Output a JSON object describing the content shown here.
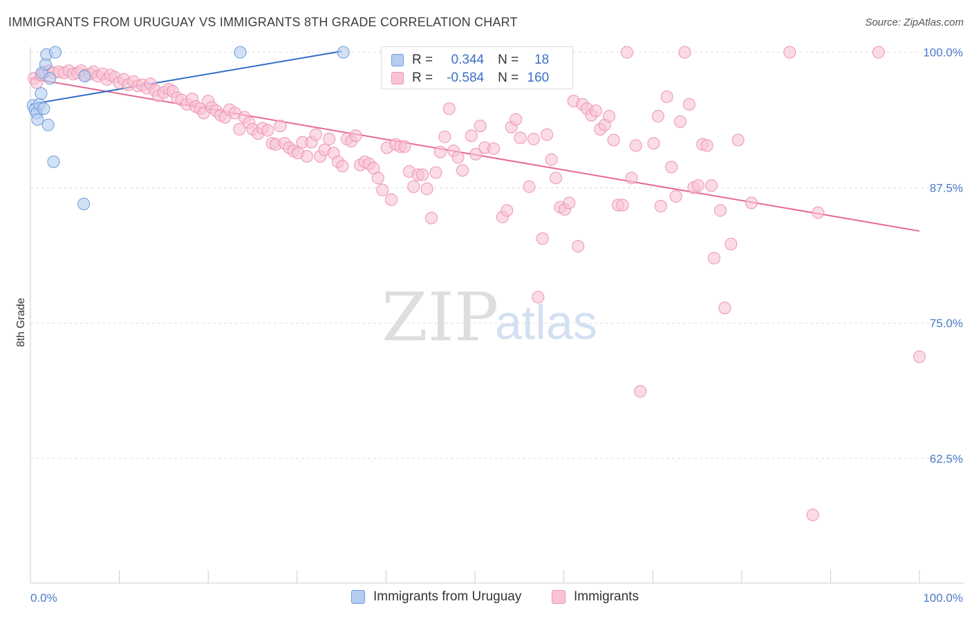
{
  "title": "IMMIGRANTS FROM URUGUAY VS IMMIGRANTS 8TH GRADE CORRELATION CHART",
  "source": "Source: ZipAtlas.com",
  "watermark": {
    "zip": "ZIP",
    "atlas": "atlas"
  },
  "legend_top": [
    {
      "r_label": "R =",
      "r_value": "0.344",
      "n_label": "N =",
      "n_value": "18"
    },
    {
      "r_label": "R =",
      "r_value": "-0.584",
      "n_label": "N =",
      "n_value": "160"
    }
  ],
  "legend_bottom": [
    {
      "label": "Immigrants from Uruguay"
    },
    {
      "label": "Immigrants"
    }
  ],
  "colors": {
    "blue_fill": "#b4cdf0",
    "blue_stroke": "#6f9ad8",
    "blue_line": "#2f6dc8",
    "pink_fill": "#f9c3d4",
    "pink_stroke": "#ee92b0",
    "pink_line": "#e76796",
    "grid": "#dddddd",
    "axis_text": "#4a7ac9"
  },
  "chart_data": {
    "type": "scatter",
    "title": "IMMIGRANTS FROM URUGUAY VS IMMIGRANTS 8TH GRADE CORRELATION CHART",
    "xlabel": "",
    "ylabel": "8th Grade",
    "xlim": [
      0,
      100
    ],
    "ylim": [
      51,
      101
    ],
    "x_tick_labels": [
      {
        "x": 0,
        "label": "0.0%"
      },
      {
        "x": 100,
        "label": "100.0%"
      }
    ],
    "y_ticks": [
      {
        "y": 100.0,
        "label": "100.0%"
      },
      {
        "y": 87.5,
        "label": "87.5%"
      },
      {
        "y": 75.0,
        "label": "75.0%"
      },
      {
        "y": 62.5,
        "label": "62.5%"
      }
    ],
    "grid": "horizontal dashed",
    "legend_placement": "bottom",
    "series": [
      {
        "name": "Immigrants from Uruguay",
        "color": "#b4cdf0",
        "trend": {
          "x": [
            0,
            35
          ],
          "y": [
            95.2,
            100.1
          ]
        },
        "points": [
          {
            "x": 0.3,
            "y": 95.1
          },
          {
            "x": 0.5,
            "y": 94.7
          },
          {
            "x": 0.7,
            "y": 94.4
          },
          {
            "x": 0.8,
            "y": 93.8
          },
          {
            "x": 1.0,
            "y": 95.2
          },
          {
            "x": 1.2,
            "y": 96.2
          },
          {
            "x": 1.3,
            "y": 98.1
          },
          {
            "x": 1.5,
            "y": 94.8
          },
          {
            "x": 1.7,
            "y": 98.9
          },
          {
            "x": 1.8,
            "y": 99.8
          },
          {
            "x": 2.0,
            "y": 93.3
          },
          {
            "x": 2.2,
            "y": 97.6
          },
          {
            "x": 2.6,
            "y": 89.9
          },
          {
            "x": 2.8,
            "y": 100.0
          },
          {
            "x": 6.1,
            "y": 97.8
          },
          {
            "x": 6.0,
            "y": 86.0
          },
          {
            "x": 23.6,
            "y": 100.0
          },
          {
            "x": 35.2,
            "y": 100.0
          }
        ]
      },
      {
        "name": "Immigrants",
        "color": "#f9c3d4",
        "trend": {
          "x": [
            0,
            100
          ],
          "y": [
            97.6,
            83.5
          ]
        },
        "points": [
          {
            "x": 0.4,
            "y": 97.6
          },
          {
            "x": 0.7,
            "y": 97.2
          },
          {
            "x": 1.2,
            "y": 97.9
          },
          {
            "x": 1.6,
            "y": 98.2
          },
          {
            "x": 2.1,
            "y": 98.3
          },
          {
            "x": 2.6,
            "y": 98.1
          },
          {
            "x": 3.2,
            "y": 98.2
          },
          {
            "x": 3.8,
            "y": 98.1
          },
          {
            "x": 4.3,
            "y": 98.3
          },
          {
            "x": 4.8,
            "y": 98.0
          },
          {
            "x": 5.3,
            "y": 98.1
          },
          {
            "x": 5.7,
            "y": 98.3
          },
          {
            "x": 6.2,
            "y": 97.9
          },
          {
            "x": 6.7,
            "y": 98.0
          },
          {
            "x": 7.1,
            "y": 98.2
          },
          {
            "x": 7.6,
            "y": 97.8
          },
          {
            "x": 8.1,
            "y": 98.0
          },
          {
            "x": 8.6,
            "y": 97.5
          },
          {
            "x": 9.0,
            "y": 97.9
          },
          {
            "x": 9.5,
            "y": 97.7
          },
          {
            "x": 10.0,
            "y": 97.2
          },
          {
            "x": 10.5,
            "y": 97.5
          },
          {
            "x": 11.0,
            "y": 97.0
          },
          {
            "x": 11.6,
            "y": 97.3
          },
          {
            "x": 12.1,
            "y": 96.9
          },
          {
            "x": 12.6,
            "y": 97.0
          },
          {
            "x": 13.1,
            "y": 96.7
          },
          {
            "x": 13.5,
            "y": 97.1
          },
          {
            "x": 14.0,
            "y": 96.5
          },
          {
            "x": 14.4,
            "y": 96.0
          },
          {
            "x": 15.0,
            "y": 96.3
          },
          {
            "x": 15.6,
            "y": 96.6
          },
          {
            "x": 16.0,
            "y": 96.4
          },
          {
            "x": 16.5,
            "y": 95.8
          },
          {
            "x": 17.0,
            "y": 95.6
          },
          {
            "x": 17.6,
            "y": 95.2
          },
          {
            "x": 18.2,
            "y": 95.7
          },
          {
            "x": 18.6,
            "y": 95.0
          },
          {
            "x": 19.1,
            "y": 94.8
          },
          {
            "x": 19.5,
            "y": 94.4
          },
          {
            "x": 20.0,
            "y": 95.5
          },
          {
            "x": 20.4,
            "y": 94.9
          },
          {
            "x": 20.9,
            "y": 94.6
          },
          {
            "x": 21.4,
            "y": 94.2
          },
          {
            "x": 21.9,
            "y": 94.0
          },
          {
            "x": 22.4,
            "y": 94.7
          },
          {
            "x": 23.0,
            "y": 94.4
          },
          {
            "x": 23.5,
            "y": 92.9
          },
          {
            "x": 24.1,
            "y": 94.0
          },
          {
            "x": 24.6,
            "y": 93.5
          },
          {
            "x": 25.0,
            "y": 92.9
          },
          {
            "x": 25.6,
            "y": 92.5
          },
          {
            "x": 26.1,
            "y": 93.0
          },
          {
            "x": 26.7,
            "y": 92.8
          },
          {
            "x": 27.2,
            "y": 91.6
          },
          {
            "x": 27.6,
            "y": 91.5
          },
          {
            "x": 28.1,
            "y": 93.2
          },
          {
            "x": 28.6,
            "y": 91.6
          },
          {
            "x": 29.1,
            "y": 91.2
          },
          {
            "x": 29.6,
            "y": 90.9
          },
          {
            "x": 30.1,
            "y": 90.7
          },
          {
            "x": 30.6,
            "y": 91.7
          },
          {
            "x": 31.1,
            "y": 90.4
          },
          {
            "x": 31.6,
            "y": 91.7
          },
          {
            "x": 32.1,
            "y": 92.4
          },
          {
            "x": 32.6,
            "y": 90.4
          },
          {
            "x": 33.1,
            "y": 91.0
          },
          {
            "x": 33.6,
            "y": 92.0
          },
          {
            "x": 34.1,
            "y": 90.7
          },
          {
            "x": 34.6,
            "y": 89.9
          },
          {
            "x": 35.1,
            "y": 89.5
          },
          {
            "x": 35.6,
            "y": 92.0
          },
          {
            "x": 36.1,
            "y": 91.8
          },
          {
            "x": 36.6,
            "y": 92.3
          },
          {
            "x": 37.1,
            "y": 89.6
          },
          {
            "x": 37.6,
            "y": 89.9
          },
          {
            "x": 38.1,
            "y": 89.7
          },
          {
            "x": 38.6,
            "y": 89.3
          },
          {
            "x": 39.1,
            "y": 88.4
          },
          {
            "x": 39.6,
            "y": 87.3
          },
          {
            "x": 40.1,
            "y": 91.2
          },
          {
            "x": 40.6,
            "y": 86.4
          },
          {
            "x": 41.1,
            "y": 91.5
          },
          {
            "x": 41.6,
            "y": 91.3
          },
          {
            "x": 42.1,
            "y": 91.3
          },
          {
            "x": 42.6,
            "y": 89.0
          },
          {
            "x": 43.1,
            "y": 87.6
          },
          {
            "x": 43.6,
            "y": 88.7
          },
          {
            "x": 44.1,
            "y": 88.7
          },
          {
            "x": 44.6,
            "y": 87.4
          },
          {
            "x": 45.1,
            "y": 84.7
          },
          {
            "x": 45.6,
            "y": 88.9
          },
          {
            "x": 46.1,
            "y": 90.8
          },
          {
            "x": 46.6,
            "y": 92.2
          },
          {
            "x": 47.1,
            "y": 94.8
          },
          {
            "x": 47.6,
            "y": 90.9
          },
          {
            "x": 48.1,
            "y": 90.3
          },
          {
            "x": 48.6,
            "y": 89.1
          },
          {
            "x": 49.6,
            "y": 92.3
          },
          {
            "x": 50.1,
            "y": 90.6
          },
          {
            "x": 50.6,
            "y": 93.2
          },
          {
            "x": 51.1,
            "y": 91.2
          },
          {
            "x": 52.1,
            "y": 91.1
          },
          {
            "x": 53.1,
            "y": 84.8
          },
          {
            "x": 53.6,
            "y": 85.4
          },
          {
            "x": 54.1,
            "y": 93.1
          },
          {
            "x": 54.6,
            "y": 93.8
          },
          {
            "x": 55.1,
            "y": 92.1
          },
          {
            "x": 56.1,
            "y": 87.6
          },
          {
            "x": 56.6,
            "y": 92.0
          },
          {
            "x": 57.1,
            "y": 77.4
          },
          {
            "x": 57.6,
            "y": 82.8
          },
          {
            "x": 58.1,
            "y": 92.4
          },
          {
            "x": 58.6,
            "y": 90.1
          },
          {
            "x": 59.1,
            "y": 88.4
          },
          {
            "x": 59.6,
            "y": 85.7
          },
          {
            "x": 60.1,
            "y": 85.5
          },
          {
            "x": 60.6,
            "y": 86.1
          },
          {
            "x": 61.1,
            "y": 95.5
          },
          {
            "x": 61.6,
            "y": 82.1
          },
          {
            "x": 62.1,
            "y": 95.2
          },
          {
            "x": 62.6,
            "y": 94.8
          },
          {
            "x": 63.1,
            "y": 94.2
          },
          {
            "x": 63.6,
            "y": 94.6
          },
          {
            "x": 64.1,
            "y": 92.9
          },
          {
            "x": 64.6,
            "y": 93.3
          },
          {
            "x": 65.1,
            "y": 94.1
          },
          {
            "x": 65.6,
            "y": 91.9
          },
          {
            "x": 66.1,
            "y": 85.9
          },
          {
            "x": 66.6,
            "y": 85.9
          },
          {
            "x": 67.1,
            "y": 100.0
          },
          {
            "x": 67.6,
            "y": 88.4
          },
          {
            "x": 68.1,
            "y": 91.4
          },
          {
            "x": 68.6,
            "y": 68.7
          },
          {
            "x": 70.1,
            "y": 91.6
          },
          {
            "x": 70.6,
            "y": 94.1
          },
          {
            "x": 70.9,
            "y": 85.8
          },
          {
            "x": 71.6,
            "y": 95.9
          },
          {
            "x": 72.1,
            "y": 89.4
          },
          {
            "x": 72.6,
            "y": 86.7
          },
          {
            "x": 73.1,
            "y": 93.6
          },
          {
            "x": 73.6,
            "y": 100.0
          },
          {
            "x": 74.1,
            "y": 95.2
          },
          {
            "x": 74.6,
            "y": 87.5
          },
          {
            "x": 75.1,
            "y": 87.7
          },
          {
            "x": 75.6,
            "y": 91.5
          },
          {
            "x": 76.1,
            "y": 91.4
          },
          {
            "x": 76.6,
            "y": 87.7
          },
          {
            "x": 76.9,
            "y": 81.0
          },
          {
            "x": 77.6,
            "y": 85.4
          },
          {
            "x": 78.1,
            "y": 76.4
          },
          {
            "x": 78.8,
            "y": 82.3
          },
          {
            "x": 79.6,
            "y": 91.9
          },
          {
            "x": 81.1,
            "y": 86.1
          },
          {
            "x": 85.4,
            "y": 100.0
          },
          {
            "x": 88.0,
            "y": 57.3
          },
          {
            "x": 88.6,
            "y": 85.2
          },
          {
            "x": 95.4,
            "y": 100.0
          },
          {
            "x": 100.0,
            "y": 71.9
          }
        ]
      }
    ]
  }
}
